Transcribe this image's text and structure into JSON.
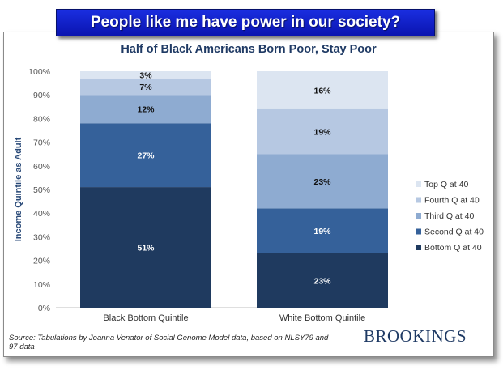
{
  "banner": {
    "text": "People like me have power in our society?"
  },
  "source_note": "Source: Tabulations by Joanna Venator of Social Genome Model data, based on NLSY79 and 97 data",
  "brand": "BROOKINGS",
  "chart_data": {
    "type": "bar",
    "stacked": true,
    "title": "Half of Black Americans Born Poor, Stay Poor",
    "ylabel": "Income Quintile as Adult",
    "xlabel": "",
    "ylim": [
      0,
      100
    ],
    "yticks": [
      "0%",
      "10%",
      "20%",
      "30%",
      "40%",
      "50%",
      "60%",
      "70%",
      "80%",
      "90%",
      "100%"
    ],
    "categories": [
      "Black Bottom Quintile",
      "White Bottom Quintile"
    ],
    "legend_position": "right",
    "series": [
      {
        "name": "Bottom Q at 40",
        "values": [
          51,
          23
        ],
        "labels": [
          "51%",
          "23%"
        ],
        "color": "#1f3a5f",
        "label_color": "#ffffff"
      },
      {
        "name": "Second Q at 40",
        "values": [
          27,
          19
        ],
        "labels": [
          "27%",
          "19%"
        ],
        "color": "#35619a",
        "label_color": "#ffffff"
      },
      {
        "name": "Third Q at 40",
        "values": [
          12,
          23
        ],
        "labels": [
          "12%",
          "23%"
        ],
        "color": "#8eabd1",
        "label_color": "#111111"
      },
      {
        "name": "Fourth Q at 40",
        "values": [
          7,
          19
        ],
        "labels": [
          "7%",
          "19%"
        ],
        "color": "#b6c8e2",
        "label_color": "#111111"
      },
      {
        "name": "Top Q at 40",
        "values": [
          3,
          16
        ],
        "labels": [
          "3%",
          "16%"
        ],
        "color": "#dce5f1",
        "label_color": "#111111"
      }
    ]
  }
}
